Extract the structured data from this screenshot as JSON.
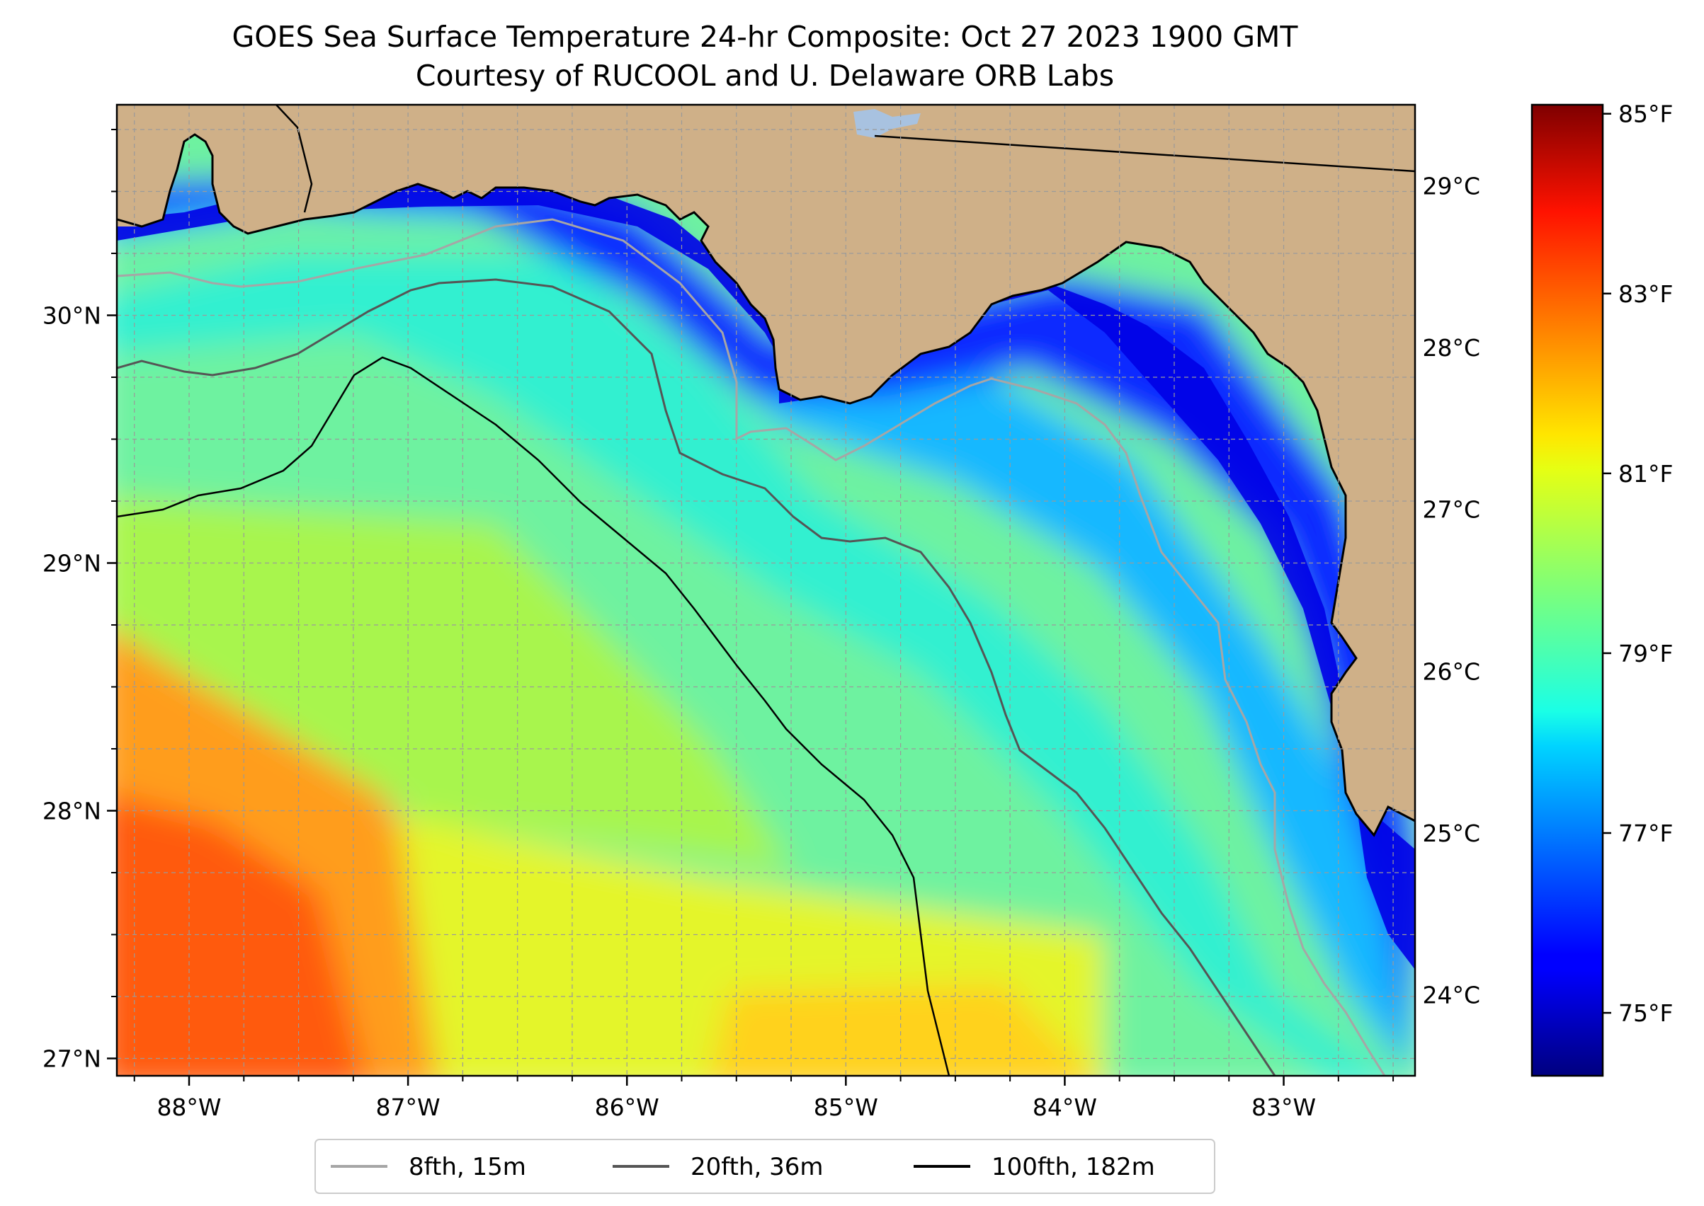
{
  "title": {
    "line1": "GOES Sea Surface Temperature 24-hr Composite: Oct 27 2023 1900 GMT",
    "line2": "Courtesy of RUCOOL and U. Delaware ORB Labs"
  },
  "map": {
    "lon_range": [
      -88.33,
      -82.4
    ],
    "lat_range": [
      26.93,
      30.85
    ],
    "lon_ticks": [
      {
        "value": -88,
        "label": "88°W"
      },
      {
        "value": -87,
        "label": "87°W"
      },
      {
        "value": -86,
        "label": "86°W"
      },
      {
        "value": -85,
        "label": "85°W"
      },
      {
        "value": -84,
        "label": "84°W"
      },
      {
        "value": -83,
        "label": "83°W"
      }
    ],
    "lat_ticks": [
      {
        "value": 30,
        "label": "30°N"
      },
      {
        "value": 29,
        "label": "29°N"
      },
      {
        "value": 28,
        "label": "28°N"
      },
      {
        "value": 27,
        "label": "27°N"
      }
    ],
    "gridlines": true,
    "grid_minor_step_deg": 0.25,
    "land_color": "#cfb088",
    "lake_color": "#a8c2e0",
    "coastline_color": "#000000"
  },
  "colorbar": {
    "colormap": "jet",
    "celsius_range": [
      23.5,
      29.5
    ],
    "celsius_ticks": [
      {
        "value": 24,
        "label": "24°C"
      },
      {
        "value": 25,
        "label": "25°C"
      },
      {
        "value": 26,
        "label": "26°C"
      },
      {
        "value": 27,
        "label": "27°C"
      },
      {
        "value": 28,
        "label": "28°C"
      },
      {
        "value": 29,
        "label": "29°C"
      }
    ],
    "fahrenheit_ticks": [
      {
        "value": 75,
        "label": "75°F"
      },
      {
        "value": 77,
        "label": "77°F"
      },
      {
        "value": 79,
        "label": "79°F"
      },
      {
        "value": 81,
        "label": "81°F"
      },
      {
        "value": 83,
        "label": "83°F"
      },
      {
        "value": 85,
        "label": "85°F"
      }
    ]
  },
  "legend": {
    "placement": "bottom-center",
    "items": [
      {
        "label": "8fth, 15m",
        "color": "#a6a6a6"
      },
      {
        "label": "20fth, 36m",
        "color": "#555555"
      },
      {
        "label": "100fth, 182m",
        "color": "#000000"
      }
    ]
  }
}
